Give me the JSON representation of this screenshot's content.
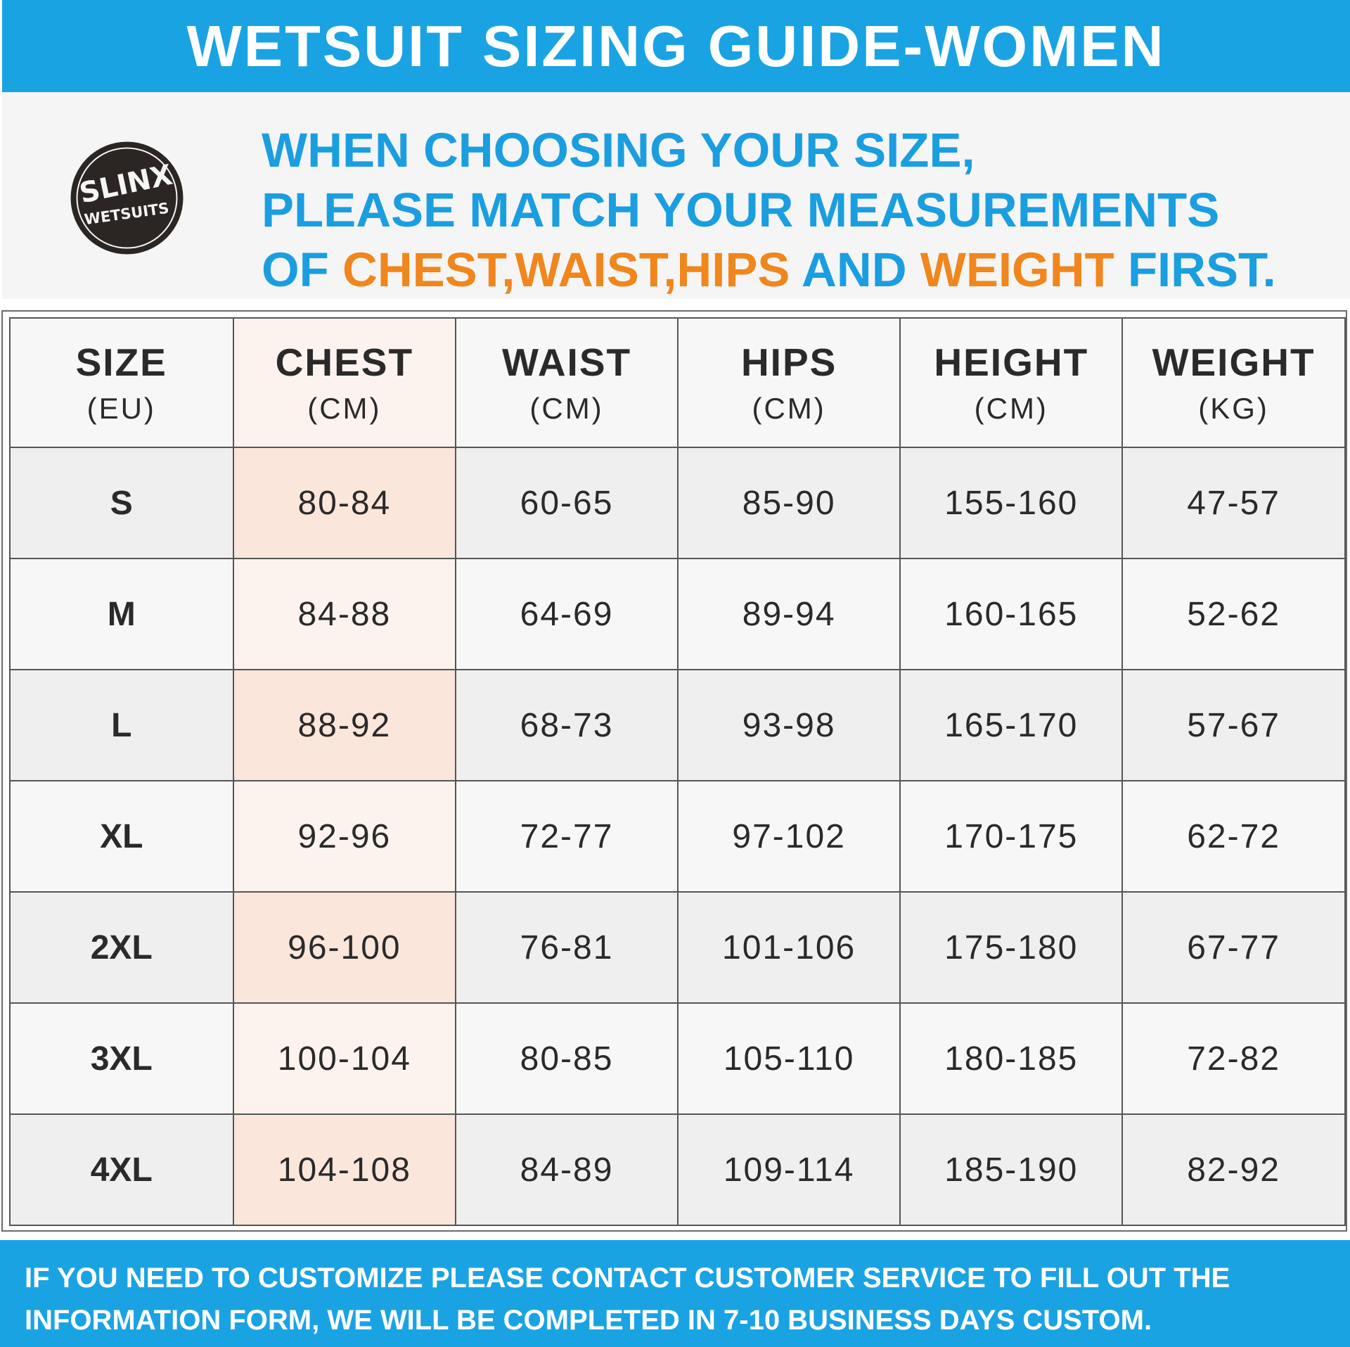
{
  "header": {
    "title": "WETSUIT SIZING GUIDE-WOMEN"
  },
  "brand": {
    "logo_text_top": "SLINX",
    "logo_text_bottom": "WETSUITS",
    "logo_icon": "brand-logo-icon"
  },
  "instruction": {
    "line1": "WHEN CHOOSING YOUR SIZE,",
    "line2": "PLEASE MATCH YOUR MEASUREMENTS",
    "line3_prefix": "OF ",
    "line3_highlight1": "CHEST,WAIST,HIPS",
    "line3_mid": " AND ",
    "line3_highlight2": "WEIGHT",
    "line3_suffix": " FIRST."
  },
  "table": {
    "columns": [
      {
        "name": "SIZE",
        "unit": "(EU)"
      },
      {
        "name": "CHEST",
        "unit": "(CM)"
      },
      {
        "name": "WAIST",
        "unit": "(CM)"
      },
      {
        "name": "HIPS",
        "unit": "(CM)"
      },
      {
        "name": "HEIGHT",
        "unit": "(CM)"
      },
      {
        "name": "WEIGHT",
        "unit": "(KG)"
      }
    ],
    "rows": [
      {
        "size": "S",
        "chest": "80-84",
        "waist": "60-65",
        "hips": "85-90",
        "height": "155-160",
        "weight": "47-57"
      },
      {
        "size": "M",
        "chest": "84-88",
        "waist": "64-69",
        "hips": "89-94",
        "height": "160-165",
        "weight": "52-62"
      },
      {
        "size": "L",
        "chest": "88-92",
        "waist": "68-73",
        "hips": "93-98",
        "height": "165-170",
        "weight": "57-67"
      },
      {
        "size": "XL",
        "chest": "92-96",
        "waist": "72-77",
        "hips": "97-102",
        "height": "170-175",
        "weight": "62-72"
      },
      {
        "size": "2XL",
        "chest": "96-100",
        "waist": "76-81",
        "hips": "101-106",
        "height": "175-180",
        "weight": "67-77"
      },
      {
        "size": "3XL",
        "chest": "100-104",
        "waist": "80-85",
        "hips": "105-110",
        "height": "180-185",
        "weight": "72-82"
      },
      {
        "size": "4XL",
        "chest": "104-108",
        "waist": "84-89",
        "hips": "109-114",
        "height": "185-190",
        "weight": "82-92"
      }
    ]
  },
  "footer": {
    "line1": "IF YOU NEED TO CUSTOMIZE PLEASE CONTACT CUSTOMER SERVICE TO FILL OUT THE",
    "line2": "INFORMATION FORM, WE WILL BE COMPLETED IN 7-10 BUSINESS DAYS CUSTOM."
  },
  "colors": {
    "brand_blue": "#1aa3e3",
    "highlight_orange": "#f0861c",
    "chest_column_tint": "#fbe6dc"
  }
}
